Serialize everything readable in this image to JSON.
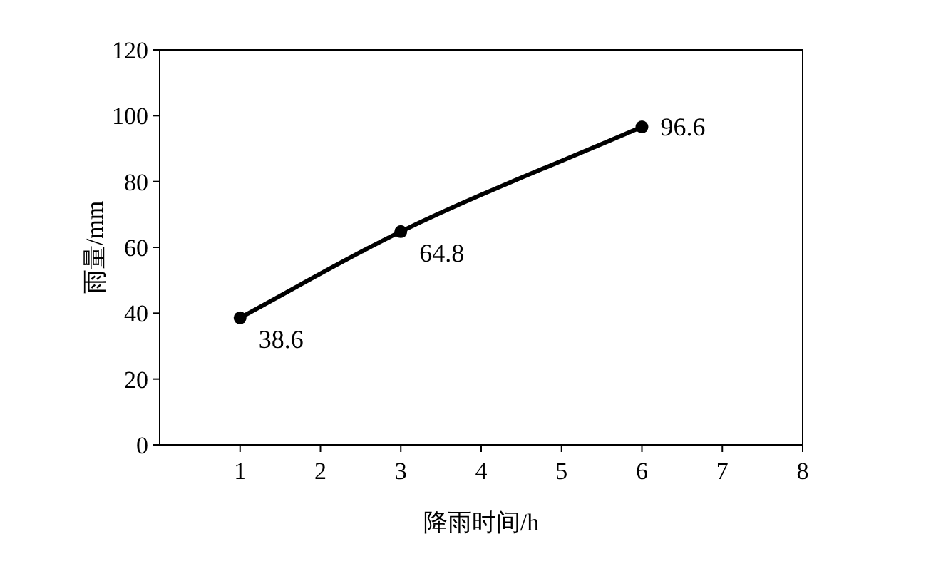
{
  "chart_data": {
    "type": "line",
    "xlabel": "降雨时间/h",
    "ylabel": "雨量/mm",
    "x": [
      1,
      3,
      6
    ],
    "series": [
      {
        "color": "#000000",
        "values": [
          38.6,
          64.8,
          96.6
        ]
      }
    ],
    "xlim": [
      0,
      8
    ],
    "xticks": [
      1,
      2,
      3,
      4,
      5,
      6,
      7,
      8
    ],
    "ylim": [
      0,
      120
    ],
    "yticks": [
      0,
      20,
      40,
      60,
      80,
      100,
      120
    ],
    "marker": "circle",
    "line_style": "solid",
    "grid": false,
    "data_labels": true
  }
}
